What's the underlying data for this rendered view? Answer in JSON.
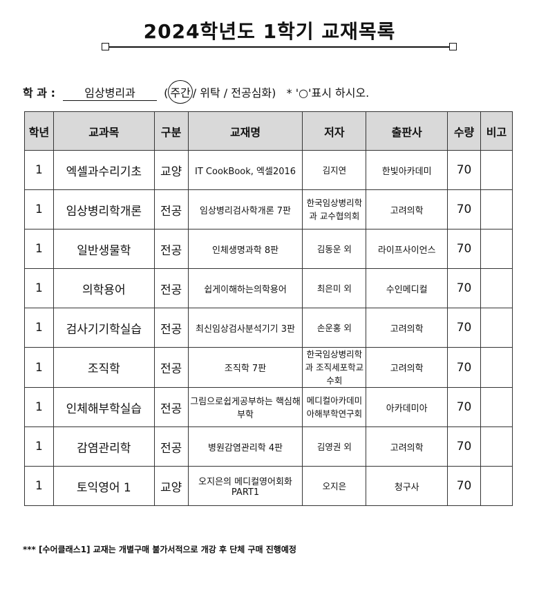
{
  "title": "2024학년도 1학기 교재목록",
  "dept": {
    "label": "학 과 :",
    "value": "임상병리과",
    "open": "(",
    "selected": "주간",
    "rest": "/ 위탁 / 전공심화)",
    "instruction": "* '○'표시 하시오."
  },
  "table": {
    "headers": [
      "학년",
      "교과목",
      "구분",
      "교재명",
      "저자",
      "출판사",
      "수량",
      "비고"
    ],
    "rows": [
      [
        "1",
        "엑셀과수리기초",
        "교양",
        "IT CookBook, 엑셀2016",
        "김지연",
        "한빛아카데미",
        "70",
        ""
      ],
      [
        "1",
        "임상병리학개론",
        "전공",
        "임상병리검사학개론 7판",
        "한국임상병리학과 교수협의회",
        "고려의학",
        "70",
        ""
      ],
      [
        "1",
        "일반생물학",
        "전공",
        "인체생명과학 8판",
        "김동운 외",
        "라이프사이언스",
        "70",
        ""
      ],
      [
        "1",
        "의학용어",
        "전공",
        "쉽게이해하는의학용어",
        "최은미 외",
        "수인메디컬",
        "70",
        ""
      ],
      [
        "1",
        "검사기기학실습",
        "전공",
        "최신임상검사분석기기 3판",
        "손운홍 외",
        "고려의학",
        "70",
        ""
      ],
      [
        "1",
        "조직학",
        "전공",
        "조직학 7판",
        "한국임상병리학과 조직세포학교수회",
        "고려의학",
        "70",
        ""
      ],
      [
        "1",
        "인체해부학실습",
        "전공",
        "그림으로쉽게공부하는 핵심해부학",
        "메디컬아카데미 아해부학연구회",
        "아카데미아",
        "70",
        ""
      ],
      [
        "1",
        "감염관리학",
        "전공",
        "병원감염관리학 4판",
        "김영권 외",
        "고려의학",
        "70",
        ""
      ],
      [
        "1",
        "토익영어 1",
        "교양",
        "오지은의 메디컬영어회화 PART1",
        "오지은",
        "청구사",
        "70",
        ""
      ]
    ]
  },
  "note": "*** [수어클래스1] 교재는 개별구매 불가서적으로 개강 후 단체 구매 진행예정"
}
